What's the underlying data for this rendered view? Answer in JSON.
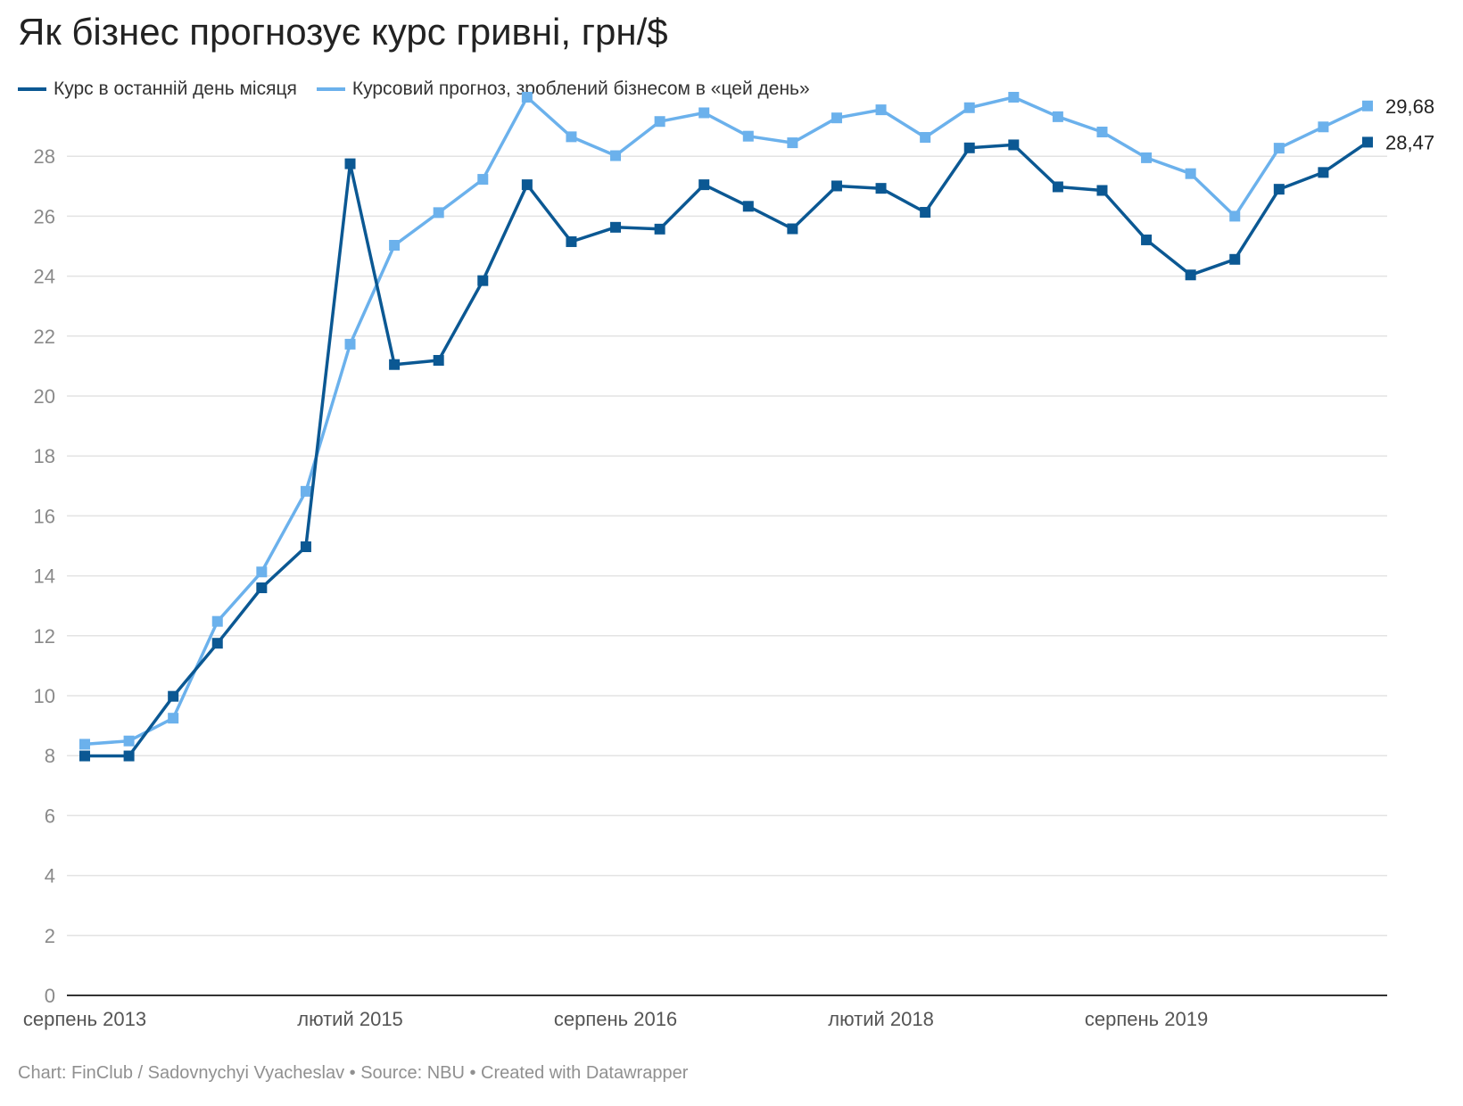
{
  "title": "Як бізнес прогнозує курс гривні, грн/$",
  "footer": "Chart: FinClub / Sadovnychyi Vyacheslav • Source: NBU • Created with Datawrapper",
  "colors": {
    "actual": "#0b5893",
    "forecast": "#6bb1ec",
    "grid": "#e3e3e3",
    "axis": "#333333",
    "tick": "#8a8a8a"
  },
  "chart_data": {
    "type": "line",
    "title": "Як бізнес прогнозує курс гривні, грн/$",
    "ylim": [
      0,
      30
    ],
    "yticks": [
      0,
      2,
      4,
      6,
      8,
      10,
      12,
      14,
      16,
      18,
      20,
      22,
      24,
      26,
      28
    ],
    "x_tick_labels": [
      {
        "index": 0,
        "label": "серпень 2013"
      },
      {
        "index": 6,
        "label": "лютий 2015"
      },
      {
        "index": 12,
        "label": "серпень 2016"
      },
      {
        "index": 18,
        "label": "лютий 2018"
      },
      {
        "index": 24,
        "label": "серпень 2019"
      }
    ],
    "grid": true,
    "legend": "top-left",
    "series": [
      {
        "name": "Курс в останній день місяця",
        "color": "#0b5893",
        "end_label": "28,47",
        "values": [
          7.99,
          7.99,
          9.98,
          11.75,
          13.6,
          14.97,
          27.75,
          21.05,
          21.19,
          23.85,
          27.05,
          25.15,
          25.63,
          25.57,
          27.05,
          26.33,
          25.58,
          27.01,
          26.93,
          26.13,
          28.28,
          28.38,
          26.98,
          26.86,
          25.21,
          24.04,
          24.56,
          26.9,
          27.46,
          28.47
        ]
      },
      {
        "name": "Курсовий прогноз, зроблений бізнесом в «цей день»",
        "color": "#6bb1ec",
        "end_label": "29,68",
        "values": [
          8.38,
          8.49,
          9.25,
          12.48,
          14.13,
          16.82,
          21.73,
          25.03,
          26.12,
          27.23,
          29.97,
          28.65,
          28.02,
          29.16,
          29.45,
          28.67,
          28.45,
          29.28,
          29.55,
          28.63,
          29.62,
          29.97,
          29.32,
          28.81,
          27.95,
          27.42,
          26.0,
          28.27,
          28.98,
          29.68
        ]
      }
    ]
  }
}
